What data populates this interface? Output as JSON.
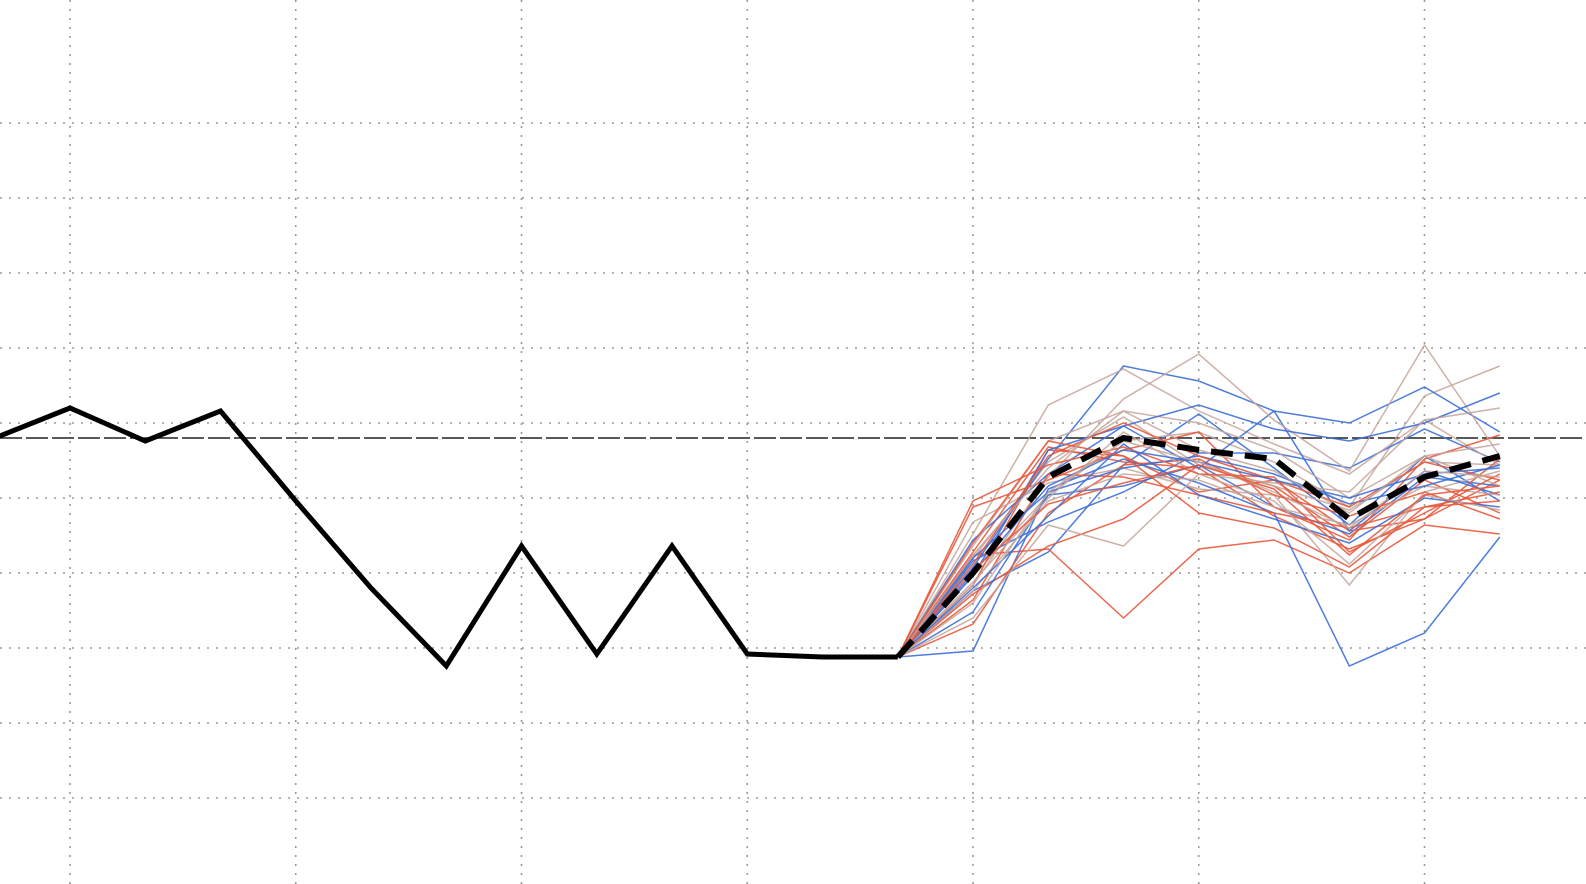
{
  "chart_data": {
    "type": "line",
    "title": "",
    "xlabel": "",
    "ylabel": "",
    "xlim": [
      -1,
      20
    ],
    "ylim": [
      -12,
      11
    ],
    "grid": true,
    "legend": "none",
    "reference_line": {
      "y": 0,
      "color": "#222222"
    },
    "colors": {
      "history": "#000000",
      "median": "#000000",
      "ensemble": [
        "#3b6fd8",
        "#e8583a",
        "#c4a39a"
      ]
    },
    "history": {
      "name": "",
      "x": [
        -1,
        0,
        1,
        2,
        3,
        4,
        5,
        6,
        7,
        8,
        9,
        10,
        11
      ],
      "y": [
        0,
        1,
        -0.1,
        0.9,
        -2.1,
        -5,
        -7.6,
        -3.6,
        -7.2,
        -3.6,
        -7.2,
        -7.3,
        -7.3
      ]
    },
    "median": {
      "name": "",
      "x": [
        11,
        12,
        13,
        14,
        15,
        16,
        17,
        18,
        19
      ],
      "y": [
        -7.3,
        -4.5,
        -1.3,
        0,
        -0.4,
        -0.7,
        -2.7,
        -1.3,
        -0.6
      ]
    },
    "ensemble": {
      "x": [
        11,
        12,
        13,
        14,
        15,
        16,
        17,
        18,
        19
      ],
      "series": [
        {
          "color": 0,
          "values": [
            -7.3,
            -5.1,
            -3.8,
            -0.9,
            0.8,
            -1.0,
            -2.9,
            -0.6,
            -2.1
          ]
        },
        {
          "color": 1,
          "values": [
            -7.3,
            -5.2,
            -3.6,
            -2.7,
            -0.9,
            -1.6,
            -3.3,
            -1.4,
            -2.5
          ]
        },
        {
          "color": 2,
          "values": [
            -7.3,
            -4.6,
            -1.9,
            -0.1,
            0.2,
            -0.8,
            -2.3,
            1.4,
            2.4
          ]
        },
        {
          "color": 0,
          "values": [
            -7.3,
            -4.1,
            -2.8,
            -1.8,
            -0.5,
            -0.5,
            -1.0,
            0.3,
            -0.8
          ]
        },
        {
          "color": 1,
          "values": [
            -7.3,
            -3.9,
            -3.7,
            -6.0,
            -3.7,
            -3.4,
            -4.5,
            -2.9,
            -3.2
          ]
        },
        {
          "color": 2,
          "values": [
            -7.3,
            -4.0,
            -0.8,
            0.7,
            -0.9,
            -1.6,
            -2.4,
            -0.8,
            -0.9
          ]
        },
        {
          "color": 0,
          "values": [
            -7.3,
            -4.3,
            -0.7,
            2.4,
            1.9,
            0.9,
            0.5,
            1.7,
            0.2
          ]
        },
        {
          "color": 1,
          "values": [
            -7.3,
            -3.8,
            -0.3,
            -0.8,
            -1.0,
            -2.6,
            -3.7,
            -2.7,
            -1.4
          ]
        },
        {
          "color": 2,
          "values": [
            -7.3,
            -3.2,
            1.1,
            2.3,
            0.9,
            -0.2,
            -1.2,
            0.6,
            -0.9
          ]
        },
        {
          "color": 0,
          "values": [
            -7.3,
            -5.8,
            -1.9,
            -1.6,
            -0.9,
            -2.3,
            -3.2,
            -1.3,
            -1.6
          ]
        },
        {
          "color": 1,
          "values": [
            -7.3,
            -4.9,
            -0.4,
            -0.6,
            -1.8,
            -1.4,
            -3.1,
            -2.7,
            -0.7
          ]
        },
        {
          "color": 2,
          "values": [
            -7.3,
            -2.8,
            -1.5,
            -1.0,
            -1.7,
            -1.9,
            -4.9,
            -1.8,
            -1.1
          ]
        },
        {
          "color": 0,
          "values": [
            -7.3,
            -3.4,
            -1.2,
            0.4,
            -1.0,
            0.9,
            -3.1,
            -1.1,
            -1.9
          ]
        },
        {
          "color": 1,
          "values": [
            -7.3,
            -2.3,
            -1.4,
            -0.4,
            0.2,
            -2.3,
            -3.4,
            -0.7,
            0.1
          ]
        },
        {
          "color": 2,
          "values": [
            -7.3,
            -3.6,
            -0.1,
            0.9,
            0.5,
            -0.4,
            -2.0,
            -0.6,
            -1.6
          ]
        },
        {
          "color": 0,
          "values": [
            -7.3,
            -7.1,
            -1.7,
            -0.7,
            -1.5,
            -2.5,
            -7.6,
            -6.5,
            -3.3
          ]
        },
        {
          "color": 1,
          "values": [
            -7.3,
            -6.2,
            -2.5,
            -0.9,
            -0.7,
            -1.9,
            -2.6,
            -1.8,
            -2.7
          ]
        },
        {
          "color": 2,
          "values": [
            -7.3,
            -4.9,
            -1.3,
            1.3,
            2.8,
            0.6,
            -1.1,
            3.1,
            -0.6
          ]
        },
        {
          "color": 0,
          "values": [
            -7.3,
            -4.6,
            -0.4,
            0.4,
            1.1,
            0.3,
            -0.1,
            0.5,
            1.5
          ]
        },
        {
          "color": 1,
          "values": [
            -7.3,
            -5.4,
            -1.2,
            -1.3,
            -1.9,
            -2.5,
            -3.0,
            -2.3,
            -1.8
          ]
        },
        {
          "color": 2,
          "values": [
            -7.3,
            -5.1,
            -2.1,
            -1.2,
            -1.4,
            -2.3,
            -2.9,
            -1.6,
            -1.9
          ]
        },
        {
          "color": 0,
          "values": [
            -7.3,
            -4.0,
            -1.8,
            -1.0,
            -0.6,
            -1.2,
            -2.2,
            -1.6,
            -0.9
          ]
        },
        {
          "color": 1,
          "values": [
            -7.3,
            -4.2,
            -0.6,
            0.5,
            -0.6,
            -1.4,
            -2.3,
            -0.8,
            -1.4
          ]
        },
        {
          "color": 2,
          "values": [
            -7.3,
            -4.8,
            -2.0,
            0.2,
            -1.2,
            -1.5,
            -1.8,
            0.6,
            1.0
          ]
        },
        {
          "color": 0,
          "values": [
            -7.3,
            -5.0,
            -2.6,
            -0.2,
            -1.9,
            -2.7,
            -3.5,
            -2.0,
            -2.3
          ]
        },
        {
          "color": 1,
          "values": [
            -7.3,
            -2.1,
            -0.9,
            -0.3,
            -1.2,
            -1.3,
            -3.8,
            -2.5,
            -1.2
          ]
        },
        {
          "color": 2,
          "values": [
            -7.3,
            -6.0,
            -2.9,
            -3.6,
            -1.2,
            -2.1,
            -4.2,
            -1.9,
            -2.4
          ]
        },
        {
          "color": 0,
          "values": [
            -7.3,
            -4.5,
            -1.6,
            -0.4,
            -0.8,
            -1.4,
            -2.0,
            -1.2,
            -1.0
          ]
        },
        {
          "color": 1,
          "values": [
            -7.3,
            -3.5,
            -0.1,
            -0.6,
            -2.5,
            -3.0,
            -4.3,
            -2.3,
            -2.1
          ]
        },
        {
          "color": 2,
          "values": [
            -7.3,
            -3.9,
            -1.0,
            0.9,
            -0.4,
            -1.1,
            -2.5,
            -0.6,
            -0.2
          ]
        },
        {
          "color": 2,
          "values": [
            -7.3,
            -5.5,
            -1.8,
            -0.1,
            -0.8,
            -1.8,
            -3.0,
            -1.1,
            -1.3
          ]
        },
        {
          "color": 1,
          "values": [
            -7.3,
            -4.4,
            -2.2,
            -1.5,
            -0.9,
            -1.7,
            -3.9,
            -1.9,
            -1.6
          ]
        }
      ]
    }
  }
}
